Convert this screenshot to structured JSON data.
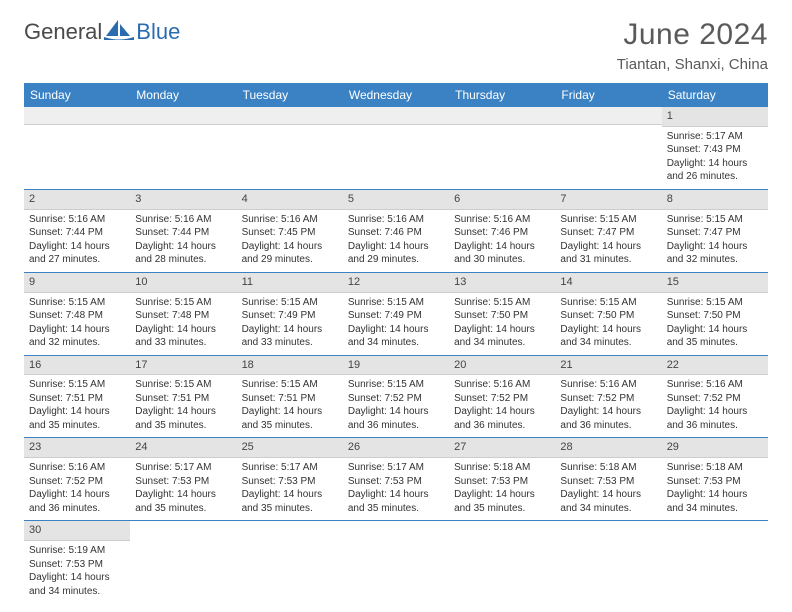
{
  "header": {
    "logo_general": "General",
    "logo_blue": "Blue",
    "month_title": "June 2024",
    "location": "Tiantan, Shanxi, China"
  },
  "colors": {
    "header_bg": "#3b82c4",
    "header_text": "#ffffff",
    "daynum_bg": "#e4e4e4",
    "row_border": "#3b82c4",
    "logo_blue": "#2b6cb0",
    "text": "#333333"
  },
  "weekdays": [
    "Sunday",
    "Monday",
    "Tuesday",
    "Wednesday",
    "Thursday",
    "Friday",
    "Saturday"
  ],
  "weeks": [
    [
      null,
      null,
      null,
      null,
      null,
      null,
      {
        "n": "1",
        "sr": "Sunrise: 5:17 AM",
        "ss": "Sunset: 7:43 PM",
        "dl": "Daylight: 14 hours and 26 minutes."
      }
    ],
    [
      {
        "n": "2",
        "sr": "Sunrise: 5:16 AM",
        "ss": "Sunset: 7:44 PM",
        "dl": "Daylight: 14 hours and 27 minutes."
      },
      {
        "n": "3",
        "sr": "Sunrise: 5:16 AM",
        "ss": "Sunset: 7:44 PM",
        "dl": "Daylight: 14 hours and 28 minutes."
      },
      {
        "n": "4",
        "sr": "Sunrise: 5:16 AM",
        "ss": "Sunset: 7:45 PM",
        "dl": "Daylight: 14 hours and 29 minutes."
      },
      {
        "n": "5",
        "sr": "Sunrise: 5:16 AM",
        "ss": "Sunset: 7:46 PM",
        "dl": "Daylight: 14 hours and 29 minutes."
      },
      {
        "n": "6",
        "sr": "Sunrise: 5:16 AM",
        "ss": "Sunset: 7:46 PM",
        "dl": "Daylight: 14 hours and 30 minutes."
      },
      {
        "n": "7",
        "sr": "Sunrise: 5:15 AM",
        "ss": "Sunset: 7:47 PM",
        "dl": "Daylight: 14 hours and 31 minutes."
      },
      {
        "n": "8",
        "sr": "Sunrise: 5:15 AM",
        "ss": "Sunset: 7:47 PM",
        "dl": "Daylight: 14 hours and 32 minutes."
      }
    ],
    [
      {
        "n": "9",
        "sr": "Sunrise: 5:15 AM",
        "ss": "Sunset: 7:48 PM",
        "dl": "Daylight: 14 hours and 32 minutes."
      },
      {
        "n": "10",
        "sr": "Sunrise: 5:15 AM",
        "ss": "Sunset: 7:48 PM",
        "dl": "Daylight: 14 hours and 33 minutes."
      },
      {
        "n": "11",
        "sr": "Sunrise: 5:15 AM",
        "ss": "Sunset: 7:49 PM",
        "dl": "Daylight: 14 hours and 33 minutes."
      },
      {
        "n": "12",
        "sr": "Sunrise: 5:15 AM",
        "ss": "Sunset: 7:49 PM",
        "dl": "Daylight: 14 hours and 34 minutes."
      },
      {
        "n": "13",
        "sr": "Sunrise: 5:15 AM",
        "ss": "Sunset: 7:50 PM",
        "dl": "Daylight: 14 hours and 34 minutes."
      },
      {
        "n": "14",
        "sr": "Sunrise: 5:15 AM",
        "ss": "Sunset: 7:50 PM",
        "dl": "Daylight: 14 hours and 34 minutes."
      },
      {
        "n": "15",
        "sr": "Sunrise: 5:15 AM",
        "ss": "Sunset: 7:50 PM",
        "dl": "Daylight: 14 hours and 35 minutes."
      }
    ],
    [
      {
        "n": "16",
        "sr": "Sunrise: 5:15 AM",
        "ss": "Sunset: 7:51 PM",
        "dl": "Daylight: 14 hours and 35 minutes."
      },
      {
        "n": "17",
        "sr": "Sunrise: 5:15 AM",
        "ss": "Sunset: 7:51 PM",
        "dl": "Daylight: 14 hours and 35 minutes."
      },
      {
        "n": "18",
        "sr": "Sunrise: 5:15 AM",
        "ss": "Sunset: 7:51 PM",
        "dl": "Daylight: 14 hours and 35 minutes."
      },
      {
        "n": "19",
        "sr": "Sunrise: 5:15 AM",
        "ss": "Sunset: 7:52 PM",
        "dl": "Daylight: 14 hours and 36 minutes."
      },
      {
        "n": "20",
        "sr": "Sunrise: 5:16 AM",
        "ss": "Sunset: 7:52 PM",
        "dl": "Daylight: 14 hours and 36 minutes."
      },
      {
        "n": "21",
        "sr": "Sunrise: 5:16 AM",
        "ss": "Sunset: 7:52 PM",
        "dl": "Daylight: 14 hours and 36 minutes."
      },
      {
        "n": "22",
        "sr": "Sunrise: 5:16 AM",
        "ss": "Sunset: 7:52 PM",
        "dl": "Daylight: 14 hours and 36 minutes."
      }
    ],
    [
      {
        "n": "23",
        "sr": "Sunrise: 5:16 AM",
        "ss": "Sunset: 7:52 PM",
        "dl": "Daylight: 14 hours and 36 minutes."
      },
      {
        "n": "24",
        "sr": "Sunrise: 5:17 AM",
        "ss": "Sunset: 7:53 PM",
        "dl": "Daylight: 14 hours and 35 minutes."
      },
      {
        "n": "25",
        "sr": "Sunrise: 5:17 AM",
        "ss": "Sunset: 7:53 PM",
        "dl": "Daylight: 14 hours and 35 minutes."
      },
      {
        "n": "26",
        "sr": "Sunrise: 5:17 AM",
        "ss": "Sunset: 7:53 PM",
        "dl": "Daylight: 14 hours and 35 minutes."
      },
      {
        "n": "27",
        "sr": "Sunrise: 5:18 AM",
        "ss": "Sunset: 7:53 PM",
        "dl": "Daylight: 14 hours and 35 minutes."
      },
      {
        "n": "28",
        "sr": "Sunrise: 5:18 AM",
        "ss": "Sunset: 7:53 PM",
        "dl": "Daylight: 14 hours and 34 minutes."
      },
      {
        "n": "29",
        "sr": "Sunrise: 5:18 AM",
        "ss": "Sunset: 7:53 PM",
        "dl": "Daylight: 14 hours and 34 minutes."
      }
    ],
    [
      {
        "n": "30",
        "sr": "Sunrise: 5:19 AM",
        "ss": "Sunset: 7:53 PM",
        "dl": "Daylight: 14 hours and 34 minutes."
      },
      null,
      null,
      null,
      null,
      null,
      null
    ]
  ]
}
